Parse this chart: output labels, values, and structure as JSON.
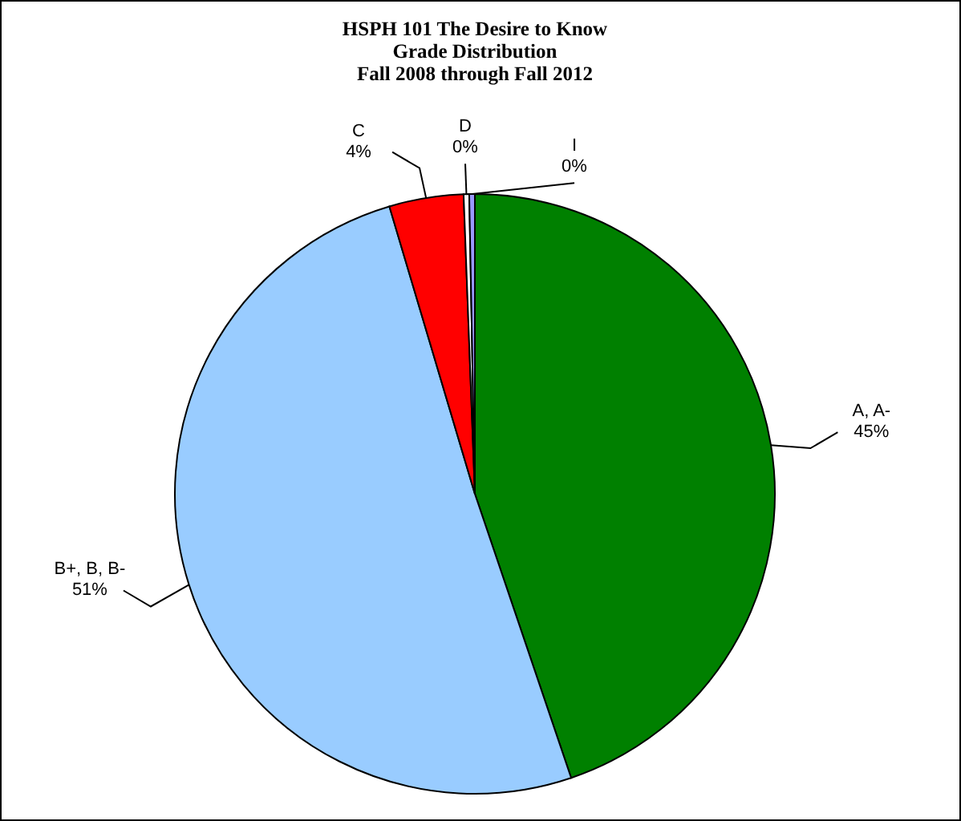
{
  "chart_data": {
    "type": "pie",
    "title": "HSPH 101 The Desire to Know\nGrade Distribution\nFall 2008 through Fall 2012",
    "categories": [
      "A, A-",
      "B+, B, B-",
      "C",
      "D",
      "I"
    ],
    "values": [
      44.8,
      50.6,
      4.0,
      0.3,
      0.3
    ],
    "value_labels": [
      "45%",
      "51%",
      "4%",
      "0%",
      "0%"
    ],
    "colors": [
      "#008000",
      "#99ccff",
      "#ff0000",
      "#ffffff",
      "#9999ff"
    ]
  }
}
